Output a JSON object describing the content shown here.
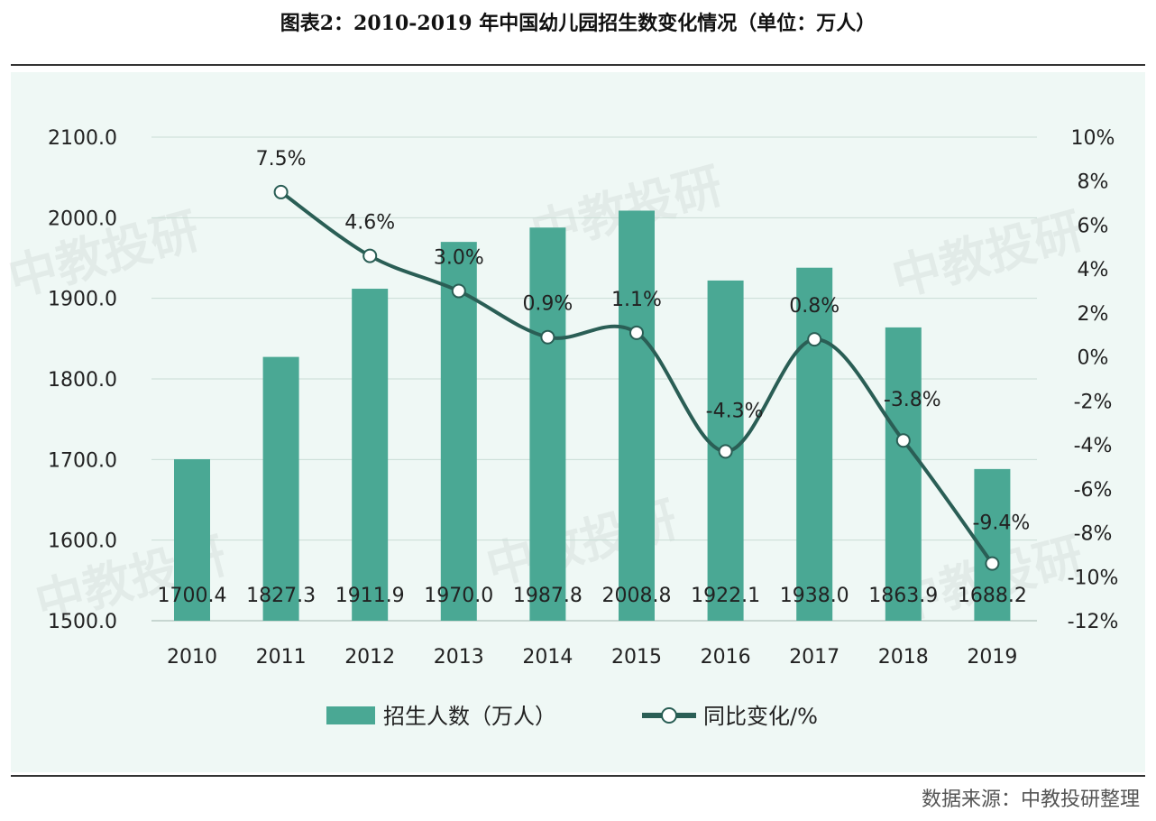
{
  "title": "图表2：2010-2019 年中国幼儿园招生数变化情况（单位：万人）",
  "source": "数据来源：中教投研整理",
  "watermark": "中教投研",
  "colors": {
    "bar": "#4aa894",
    "line": "#2a5e55",
    "background": "#eff8f5",
    "grid": "#c9dcd5"
  },
  "chart_data": {
    "type": "bar+line",
    "categories": [
      "2010",
      "2011",
      "2012",
      "2013",
      "2014",
      "2015",
      "2016",
      "2017",
      "2018",
      "2019"
    ],
    "series": [
      {
        "name": "招生人数（万人）",
        "type": "bar",
        "axis": "left",
        "values": [
          1700.4,
          1827.3,
          1911.9,
          1970.0,
          1987.8,
          2008.8,
          1922.1,
          1938.0,
          1863.9,
          1688.2
        ],
        "labels": [
          "1700.4",
          "1827.3",
          "1911.9",
          "1970.0",
          "1987.8",
          "2008.8",
          "1922.1",
          "1938.0",
          "1863.9",
          "1688.2"
        ]
      },
      {
        "name": "同比变化/%",
        "type": "line",
        "axis": "right",
        "smooth": true,
        "values": [
          null,
          7.5,
          4.6,
          3.0,
          0.9,
          1.1,
          -4.3,
          0.8,
          -3.8,
          -9.4
        ],
        "labels": [
          "",
          "7.5%",
          "4.6%",
          "3.0%",
          "0.9%",
          "1.1%",
          "-4.3%",
          "0.8%",
          "-3.8%",
          "-9.4%"
        ]
      }
    ],
    "left_axis": {
      "range": [
        1500,
        2100
      ],
      "ticks": [
        "1500.0",
        "1600.0",
        "1700.0",
        "1800.0",
        "1900.0",
        "2000.0",
        "2100.0"
      ]
    },
    "right_axis": {
      "range": [
        -12,
        10
      ],
      "ticks": [
        "-12%",
        "-10%",
        "-8%",
        "-6%",
        "-4%",
        "-2%",
        "0%",
        "2%",
        "4%",
        "6%",
        "8%",
        "10%"
      ]
    },
    "grid": true,
    "legend_position": "bottom"
  }
}
